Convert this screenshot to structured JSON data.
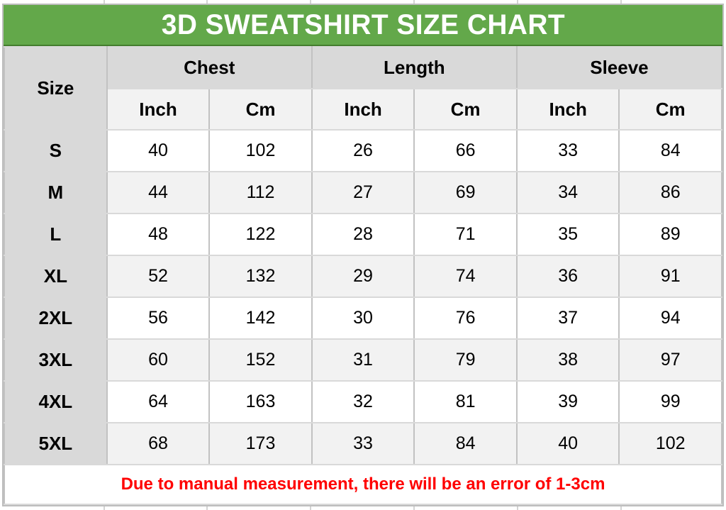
{
  "title": "3D SWEATSHIRT SIZE CHART",
  "note": "Due to manual measurement, there will be an error of 1-3cm",
  "header": {
    "size": "Size",
    "groups": [
      "Chest",
      "Length",
      "Sleeve"
    ],
    "units": [
      "Inch",
      "Cm",
      "Inch",
      "Cm",
      "Inch",
      "Cm"
    ]
  },
  "colors": {
    "banner_green": "#63a84a",
    "banner_border_green": "#447d2e",
    "header_grey": "#d9d9d9",
    "alt_row_grey": "#f2f2f2",
    "note_red": "#ff0000"
  },
  "chart_data": {
    "type": "table",
    "title": "3D SWEATSHIRT SIZE CHART",
    "size_column_header": "Size",
    "column_groups": [
      "Chest",
      "Length",
      "Sleeve"
    ],
    "unit_columns": [
      "Inch",
      "Cm",
      "Inch",
      "Cm",
      "Inch",
      "Cm"
    ],
    "rows": [
      {
        "size": "S",
        "values": [
          40,
          102,
          26,
          66,
          33,
          84
        ]
      },
      {
        "size": "M",
        "values": [
          44,
          112,
          27,
          69,
          34,
          86
        ]
      },
      {
        "size": "L",
        "values": [
          48,
          122,
          28,
          71,
          35,
          89
        ]
      },
      {
        "size": "XL",
        "values": [
          52,
          132,
          29,
          74,
          36,
          91
        ]
      },
      {
        "size": "2XL",
        "values": [
          56,
          142,
          30,
          76,
          37,
          94
        ]
      },
      {
        "size": "3XL",
        "values": [
          60,
          152,
          31,
          79,
          38,
          97
        ]
      },
      {
        "size": "4XL",
        "values": [
          64,
          163,
          32,
          81,
          39,
          99
        ]
      },
      {
        "size": "5XL",
        "values": [
          68,
          173,
          33,
          84,
          40,
          102
        ]
      }
    ],
    "note": "Due to manual measurement, there will be an error of 1-3cm"
  }
}
